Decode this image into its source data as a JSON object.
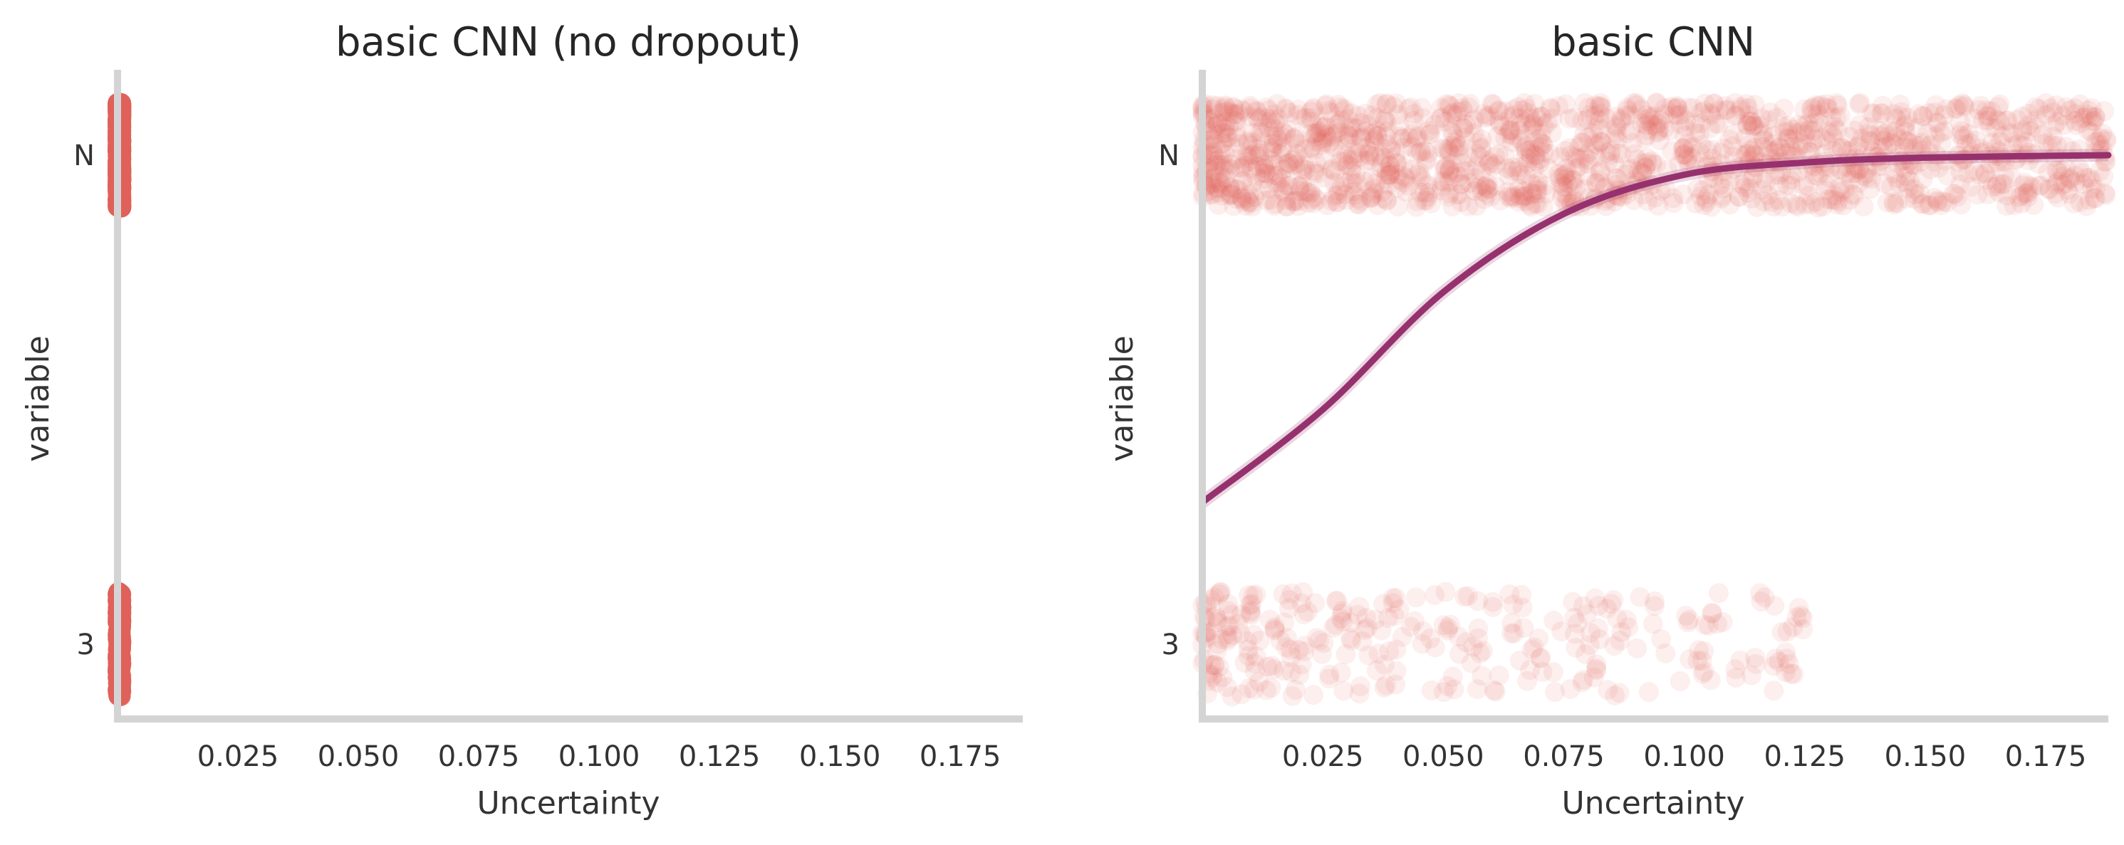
{
  "chart_data": [
    {
      "type": "scatter",
      "title": "basic CNN (no dropout)",
      "xlabel": "Uncertainty",
      "ylabel": "variable",
      "xlim": [
        0.0,
        0.188
      ],
      "x_ticks": [
        "0.025",
        "0.050",
        "0.075",
        "0.100",
        "0.125",
        "0.150",
        "0.175"
      ],
      "x_tick_values": [
        0.025,
        0.05,
        0.075,
        0.1,
        0.125,
        0.15,
        0.175
      ],
      "categories": [
        "N",
        "3"
      ],
      "grid": false,
      "point_color": "#e0605a",
      "series": [
        {
          "category": "N",
          "x_range": [
            0.0,
            0.0008
          ],
          "count": 1500,
          "opacity": 0.9
        },
        {
          "category": "3",
          "x_range": [
            0.0,
            0.0008
          ],
          "count": 300,
          "opacity": 0.9
        }
      ],
      "fit_curve": null
    },
    {
      "type": "scatter",
      "title": "basic CNN",
      "xlabel": "Uncertainty",
      "ylabel": "variable",
      "xlim": [
        0.0,
        0.188
      ],
      "x_ticks": [
        "0.025",
        "0.050",
        "0.075",
        "0.100",
        "0.125",
        "0.150",
        "0.175"
      ],
      "x_tick_values": [
        0.025,
        0.05,
        0.075,
        0.1,
        0.125,
        0.15,
        0.175
      ],
      "categories": [
        "N",
        "3"
      ],
      "grid": false,
      "point_color": "#e0605a",
      "series": [
        {
          "category": "N",
          "x_range": [
            0.0,
            0.188
          ],
          "count": 1500,
          "opacity": 0.1
        },
        {
          "category": "3",
          "x_range": [
            0.0,
            0.125
          ],
          "count": 300,
          "opacity": 0.1
        }
      ],
      "fit_curve": {
        "type": "logistic",
        "color": "#96316e",
        "points": [
          [
            0.0,
            0.29
          ],
          [
            0.025,
            0.48
          ],
          [
            0.05,
            0.72
          ],
          [
            0.075,
            0.88
          ],
          [
            0.1,
            0.96
          ],
          [
            0.125,
            0.985
          ],
          [
            0.15,
            0.995
          ],
          [
            0.188,
            1.0
          ]
        ]
      }
    }
  ]
}
